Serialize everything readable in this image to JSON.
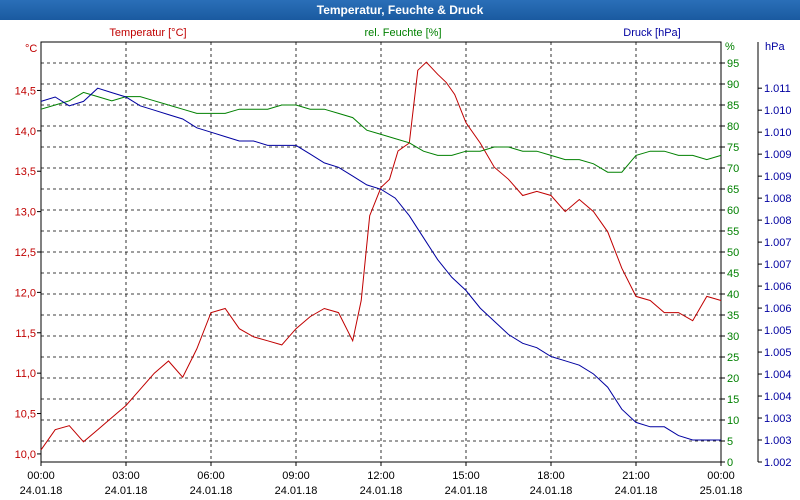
{
  "window": {
    "title": "Temperatur, Feuchte & Druck"
  },
  "colors": {
    "temp": "#c00000",
    "hum": "#008000",
    "press": "#0000a0",
    "grid": "#000000"
  },
  "axes": {
    "temp": {
      "label": "Temperatur [°C]",
      "unit": "°C",
      "min": 9.9,
      "max": 15.1,
      "ticks": [
        "10,0",
        "10,5",
        "11,0",
        "11,5",
        "12,0",
        "12,5",
        "13,0",
        "13,5",
        "14,0",
        "14,5"
      ],
      "tickValues": [
        10.0,
        10.5,
        11.0,
        11.5,
        12.0,
        12.5,
        13.0,
        13.5,
        14.0,
        14.5
      ]
    },
    "hum": {
      "label": "rel. Feuchte [%]",
      "unit": "%",
      "min": 0,
      "max": 100,
      "ticks": [
        "0",
        "5",
        "10",
        "15",
        "20",
        "25",
        "30",
        "35",
        "40",
        "45",
        "50",
        "55",
        "60",
        "65",
        "70",
        "75",
        "80",
        "85",
        "90",
        "95"
      ],
      "tickValues": [
        0,
        5,
        10,
        15,
        20,
        25,
        30,
        35,
        40,
        45,
        50,
        55,
        60,
        65,
        70,
        75,
        80,
        85,
        90,
        95
      ]
    },
    "press": {
      "label": "Druck [hPa]",
      "unit": "hPa",
      "min": 1002.0,
      "max": 1011.55,
      "ticks": [
        "1.002",
        "1.003",
        "1.003",
        "1.004",
        "1.004",
        "1.005",
        "1.005",
        "1.006",
        "1.006",
        "1.007",
        "1.007",
        "1.008",
        "1.008",
        "1.009",
        "1.009",
        "1.010",
        "1.010",
        "1.011"
      ],
      "tickValues": [
        1002.0,
        1002.5,
        1003.0,
        1003.5,
        1004.0,
        1004.5,
        1005.0,
        1005.5,
        1006.0,
        1006.5,
        1007.0,
        1007.5,
        1008.0,
        1008.5,
        1009.0,
        1009.5,
        1010.0,
        1010.5
      ]
    },
    "x": {
      "ticks": [
        {
          "time": "00:00",
          "date": "24.01.18",
          "h": 0
        },
        {
          "time": "03:00",
          "date": "24.01.18",
          "h": 3
        },
        {
          "time": "06:00",
          "date": "24.01.18",
          "h": 6
        },
        {
          "time": "09:00",
          "date": "24.01.18",
          "h": 9
        },
        {
          "time": "12:00",
          "date": "24.01.18",
          "h": 12
        },
        {
          "time": "15:00",
          "date": "24.01.18",
          "h": 15
        },
        {
          "time": "18:00",
          "date": "24.01.18",
          "h": 18
        },
        {
          "time": "21:00",
          "date": "24.01.18",
          "h": 21
        },
        {
          "time": "00:00",
          "date": "25.01.18",
          "h": 24
        }
      ]
    }
  },
  "chart_data": {
    "type": "line",
    "title": "Temperatur, Feuchte & Druck",
    "x_unit": "hours since 24.01.18 00:00",
    "xlim": [
      0,
      24
    ],
    "grid": true,
    "series": [
      {
        "name": "Temperatur [°C]",
        "axis": "temp",
        "x": [
          0,
          0.5,
          1,
          1.5,
          2,
          2.5,
          3,
          3.5,
          4,
          4.5,
          5,
          5.5,
          6,
          6.5,
          7,
          7.5,
          8,
          8.5,
          9,
          9.5,
          10,
          10.5,
          11,
          11.3,
          11.6,
          12,
          12.3,
          12.6,
          13,
          13.3,
          13.6,
          14,
          14.3,
          14.6,
          15,
          15.5,
          16,
          16.5,
          17,
          17.5,
          18,
          18.5,
          19,
          19.5,
          20,
          20.5,
          21,
          21.5,
          22,
          22.5,
          23,
          23.5,
          24
        ],
        "values": [
          10.05,
          10.3,
          10.35,
          10.15,
          10.3,
          10.45,
          10.6,
          10.8,
          11.0,
          11.15,
          10.95,
          11.3,
          11.75,
          11.8,
          11.55,
          11.45,
          11.4,
          11.35,
          11.55,
          11.7,
          11.8,
          11.75,
          11.4,
          11.9,
          12.95,
          13.3,
          13.4,
          13.75,
          13.85,
          14.75,
          14.85,
          14.7,
          14.6,
          14.45,
          14.1,
          13.85,
          13.55,
          13.4,
          13.2,
          13.25,
          13.2,
          13.0,
          13.15,
          13.0,
          12.75,
          12.3,
          11.95,
          11.9,
          11.75,
          11.75,
          11.65,
          11.95,
          11.9
        ]
      },
      {
        "name": "rel. Feuchte [%]",
        "axis": "hum",
        "x": [
          0,
          0.5,
          1,
          1.5,
          2,
          2.5,
          3,
          3.5,
          4,
          4.5,
          5,
          5.5,
          6,
          6.5,
          7,
          7.5,
          8,
          8.5,
          9,
          9.5,
          10,
          10.5,
          11,
          11.5,
          12,
          12.5,
          13,
          13.5,
          14,
          14.5,
          15,
          15.5,
          16,
          16.5,
          17,
          17.5,
          18,
          18.5,
          19,
          19.5,
          20,
          20.5,
          21,
          21.5,
          22,
          22.5,
          23,
          23.5,
          24
        ],
        "values": [
          84,
          85,
          86,
          88,
          87,
          86,
          87,
          87,
          86,
          85,
          84,
          83,
          83,
          83,
          84,
          84,
          84,
          85,
          85,
          84,
          84,
          83,
          82,
          79,
          78,
          77,
          76,
          74,
          73,
          73,
          74,
          74,
          75,
          75,
          74,
          74,
          73,
          72,
          72,
          71,
          69,
          69,
          73,
          74,
          74,
          73,
          73,
          72,
          73
        ]
      },
      {
        "name": "Druck [hPa]",
        "axis": "press",
        "x": [
          0,
          0.5,
          1,
          1.5,
          2,
          2.5,
          3,
          3.5,
          4,
          4.5,
          5,
          5.5,
          6,
          6.5,
          7,
          7.5,
          8,
          8.5,
          9,
          9.5,
          10,
          10.5,
          11,
          11.5,
          12,
          12.5,
          13,
          13.5,
          14,
          14.5,
          15,
          15.5,
          16,
          16.5,
          17,
          17.5,
          18,
          18.5,
          19,
          19.5,
          20,
          20.5,
          21,
          21.5,
          22,
          22.5,
          23,
          23.5,
          24
        ],
        "values": [
          1010.2,
          1010.3,
          1010.1,
          1010.2,
          1010.5,
          1010.4,
          1010.3,
          1010.1,
          1010.0,
          1009.9,
          1009.8,
          1009.6,
          1009.5,
          1009.4,
          1009.3,
          1009.3,
          1009.2,
          1009.2,
          1009.2,
          1009.0,
          1008.8,
          1008.7,
          1008.5,
          1008.3,
          1008.2,
          1008.0,
          1007.6,
          1007.1,
          1006.6,
          1006.2,
          1005.9,
          1005.5,
          1005.2,
          1004.9,
          1004.7,
          1004.6,
          1004.4,
          1004.3,
          1004.2,
          1004.0,
          1003.7,
          1003.2,
          1002.9,
          1002.8,
          1002.8,
          1002.6,
          1002.5,
          1002.5,
          1002.5
        ]
      }
    ]
  }
}
